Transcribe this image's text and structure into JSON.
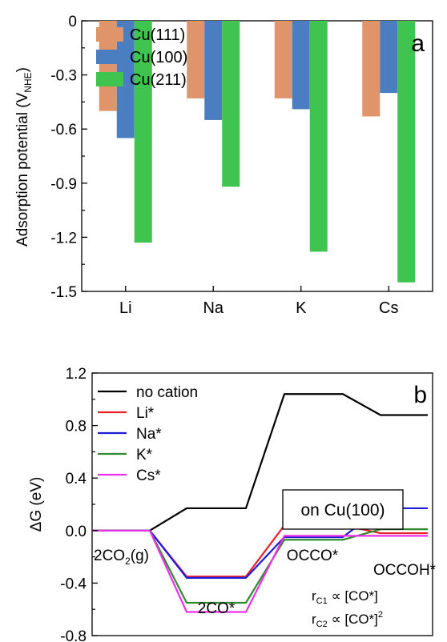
{
  "chart_data": [
    {
      "panel_label": "a",
      "type": "bar",
      "title": "",
      "xlabel": "",
      "ylabel": "Adsorption potential (V",
      "ylabel_sub": "NHE",
      "ylabel_close": ")",
      "ylim": [
        -1.5,
        0
      ],
      "yticks": [
        0,
        -0.3,
        -0.6,
        -0.9,
        -1.2,
        -1.5
      ],
      "ytick_labels": [
        "0",
        "-0.3",
        "-0.6",
        "-0.9",
        "-1.2",
        "-1.5"
      ],
      "categories": [
        "Li",
        "Na",
        "K",
        "Cs"
      ],
      "legend_position": "top-left",
      "grid": false,
      "series": [
        {
          "name": "Cu(111)",
          "color": "#e0946a",
          "values": [
            -0.5,
            -0.43,
            -0.43,
            -0.53
          ]
        },
        {
          "name": "Cu(100)",
          "color": "#4a7ec0",
          "values": [
            -0.65,
            -0.55,
            -0.49,
            -0.4
          ]
        },
        {
          "name": "Cu(211)",
          "color": "#3fc44f",
          "values": [
            -1.23,
            -0.92,
            -1.28,
            -1.45
          ]
        }
      ]
    },
    {
      "panel_label": "b",
      "type": "line",
      "title": "",
      "xlabel": "",
      "ylabel": "ΔG (eV)",
      "ylim": [
        -0.8,
        1.2
      ],
      "yticks": [
        -0.8,
        -0.4,
        0.0,
        0.4,
        0.8,
        1.2
      ],
      "ytick_labels": [
        "-0.8",
        "-0.4",
        "0.0",
        "0.4",
        "0.8",
        "1.2"
      ],
      "legend_position": "top-left",
      "grid": false,
      "box_label": "on Cu(100)",
      "states": [
        {
          "label_main": "2CO",
          "label_sub": "2",
          "label_tail": "(g)"
        },
        {
          "label_main": "2CO*",
          "label_sub": "",
          "label_tail": ""
        },
        {
          "label_main": "OCCO*",
          "label_sub": "",
          "label_tail": ""
        },
        {
          "label_main": "OCCOH*",
          "label_sub": "",
          "label_tail": ""
        }
      ],
      "rate_lines": [
        {
          "r": "r",
          "sub": "C1",
          "rel": " ∝ [CO*]",
          "sup": ""
        },
        {
          "r": "r",
          "sub": "C2",
          "rel": " ∝ [CO*]",
          "sup": "2"
        }
      ],
      "series": [
        {
          "name": "no cation",
          "color": "#000000",
          "values": [
            0.0,
            0.17,
            1.04,
            0.88
          ]
        },
        {
          "name": "Li*",
          "color": "#e8202a",
          "values": [
            0.0,
            -0.35,
            0.04,
            -0.02
          ]
        },
        {
          "name": "Na*",
          "color": "#1c1cd8",
          "values": [
            0.0,
            -0.36,
            -0.05,
            0.17
          ]
        },
        {
          "name": "K*",
          "color": "#2e8b2e",
          "values": [
            0.0,
            -0.55,
            -0.07,
            0.01
          ]
        },
        {
          "name": "Cs*",
          "color": "#ee2ee8",
          "values": [
            0.0,
            -0.62,
            -0.04,
            -0.04
          ]
        }
      ]
    }
  ]
}
